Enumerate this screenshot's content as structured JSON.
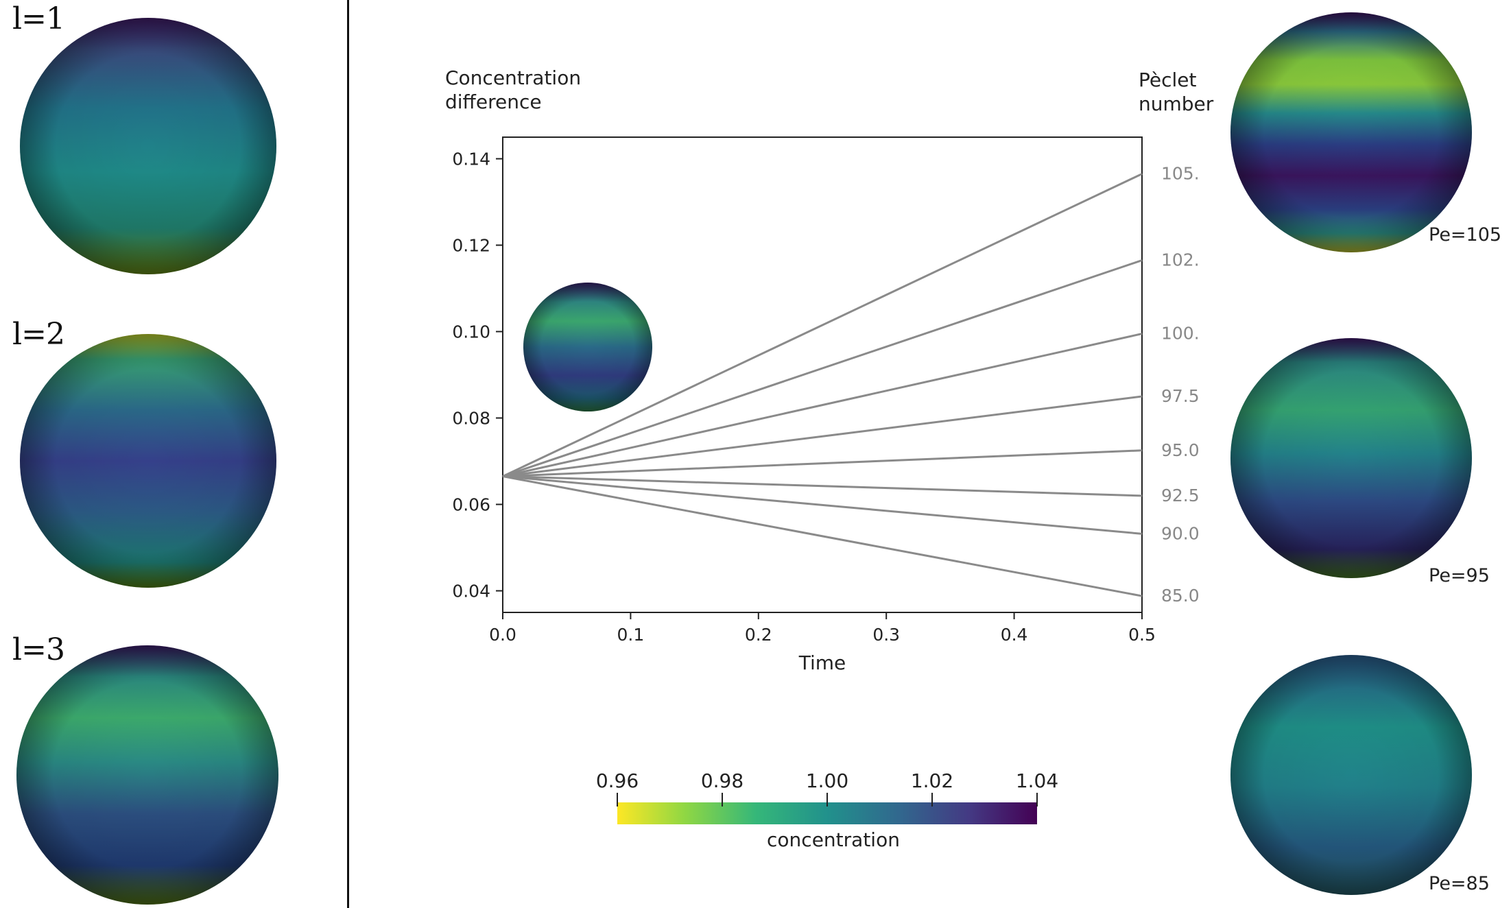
{
  "left_panel": {
    "modes": [
      "l=1",
      "l=2",
      "l=3"
    ]
  },
  "right_panel": {
    "pe_labels": [
      "Pe=105",
      "Pe=95",
      "Pe=85"
    ]
  },
  "chart_data": {
    "type": "line",
    "ylabel_line1": "Concentration",
    "ylabel_line2": "difference",
    "right_label_line1": "Pèclet",
    "right_label_line2": "number",
    "xlabel": "Time",
    "xlim": [
      0.0,
      0.5
    ],
    "ylim": [
      0.035,
      0.145
    ],
    "x_ticks": [
      "0.0",
      "0.1",
      "0.2",
      "0.3",
      "0.4",
      "0.5"
    ],
    "y_ticks": [
      "0.04",
      "0.06",
      "0.08",
      "0.10",
      "0.12",
      "0.14"
    ],
    "x": [
      0.0,
      0.5
    ],
    "line_color": "#8a8a8a",
    "series": [
      {
        "name": "105.",
        "values": [
          0.0665,
          0.1365
        ]
      },
      {
        "name": "102.",
        "values": [
          0.0665,
          0.1165
        ]
      },
      {
        "name": "100.",
        "values": [
          0.0665,
          0.0995
        ]
      },
      {
        "name": "97.5",
        "values": [
          0.0665,
          0.085
        ]
      },
      {
        "name": "95.0",
        "values": [
          0.0665,
          0.0725
        ]
      },
      {
        "name": "92.5",
        "values": [
          0.0665,
          0.062
        ]
      },
      {
        "name": "90.0",
        "values": [
          0.0665,
          0.0532
        ]
      },
      {
        "name": "85.0",
        "values": [
          0.0665,
          0.0388
        ]
      }
    ]
  },
  "colorbar": {
    "label": "concentration",
    "ticks": [
      "0.96",
      "0.98",
      "1.00",
      "1.02",
      "1.04"
    ],
    "range": [
      0.96,
      1.04
    ],
    "colors": [
      "#fde725",
      "#90d743",
      "#35b779",
      "#21918c",
      "#31688e",
      "#443983",
      "#440154"
    ]
  }
}
